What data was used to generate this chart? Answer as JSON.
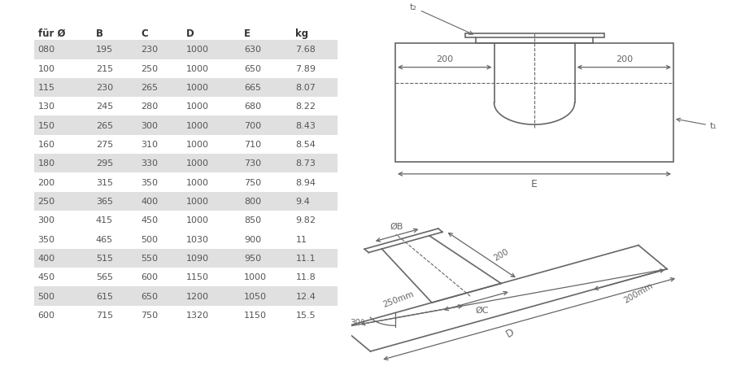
{
  "table": {
    "headers": [
      "für Ø",
      "B",
      "C",
      "D",
      "E",
      "kg"
    ],
    "rows": [
      [
        "080",
        "195",
        "230",
        "1000",
        "630",
        "7.68"
      ],
      [
        "100",
        "215",
        "250",
        "1000",
        "650",
        "7.89"
      ],
      [
        "115",
        "230",
        "265",
        "1000",
        "665",
        "8.07"
      ],
      [
        "130",
        "245",
        "280",
        "1000",
        "680",
        "8.22"
      ],
      [
        "150",
        "265",
        "300",
        "1000",
        "700",
        "8.43"
      ],
      [
        "160",
        "275",
        "310",
        "1000",
        "710",
        "8.54"
      ],
      [
        "180",
        "295",
        "330",
        "1000",
        "730",
        "8.73"
      ],
      [
        "200",
        "315",
        "350",
        "1000",
        "750",
        "8.94"
      ],
      [
        "250",
        "365",
        "400",
        "1000",
        "800",
        "9.4"
      ],
      [
        "300",
        "415",
        "450",
        "1000",
        "850",
        "9.82"
      ],
      [
        "350",
        "465",
        "500",
        "1030",
        "900",
        "11"
      ],
      [
        "400",
        "515",
        "550",
        "1090",
        "950",
        "11.1"
      ],
      [
        "450",
        "565",
        "600",
        "1150",
        "1000",
        "11.8"
      ],
      [
        "500",
        "615",
        "650",
        "1200",
        "1050",
        "12.4"
      ],
      [
        "600",
        "715",
        "750",
        "1320",
        "1150",
        "15.5"
      ]
    ],
    "shaded_rows": [
      0,
      2,
      4,
      6,
      8,
      11,
      13
    ],
    "shade_color": "#e0e0e0",
    "bg_color": "#ffffff",
    "text_color": "#555555",
    "header_color": "#333333"
  },
  "diagram_bg": "#ffffff",
  "line_color": "#666666"
}
